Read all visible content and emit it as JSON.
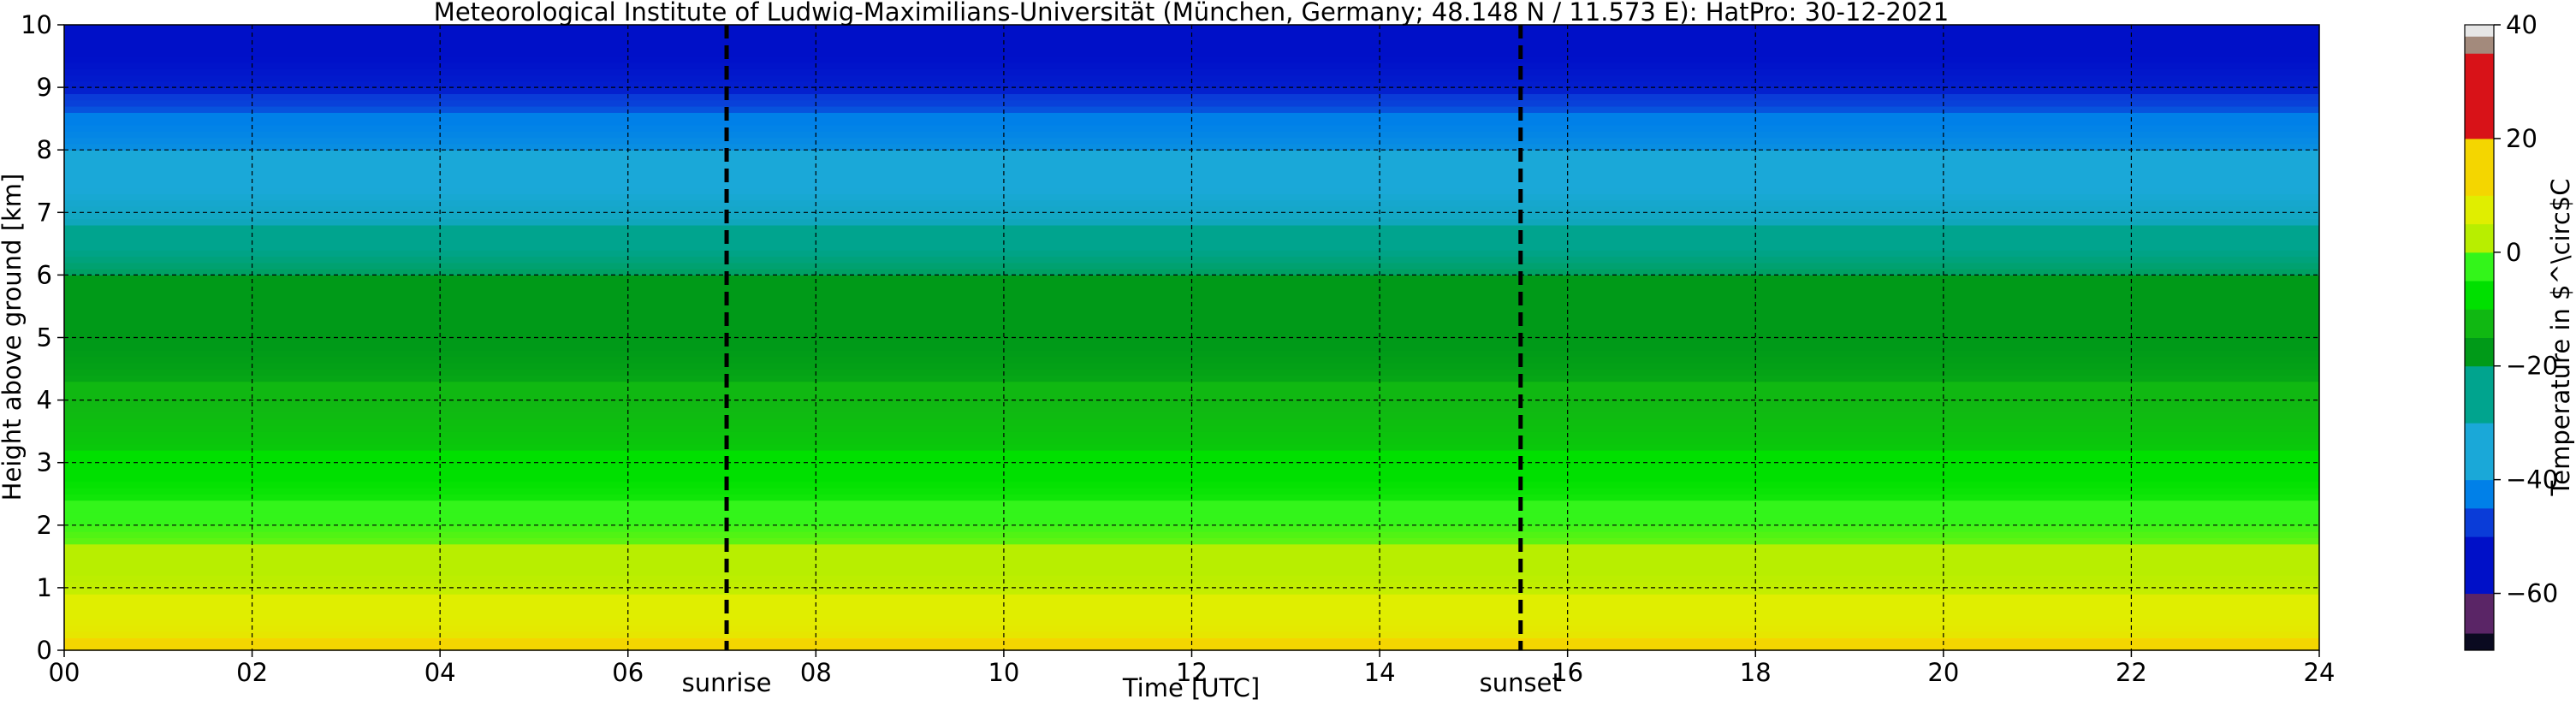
{
  "chart_data": {
    "type": "heatmap",
    "title": "Meteorological Institute of Ludwig-Maximilians-Universität (München, Germany; 48.148 N / 11.573 E):    HatPro: 30-12-2021",
    "xlabel": "Time [UTC]",
    "ylabel": "Height above ground [km]",
    "xlim": [
      0,
      24
    ],
    "ylim": [
      0,
      10
    ],
    "grid": true,
    "x_ticks": [
      "00",
      "02",
      "04",
      "06",
      "08",
      "10",
      "12",
      "14",
      "16",
      "18",
      "20",
      "22",
      "24"
    ],
    "y_ticks": [
      "0",
      "1",
      "2",
      "3",
      "4",
      "5",
      "6",
      "7",
      "8",
      "9",
      "10"
    ],
    "events": [
      {
        "label": "sunrise",
        "time": 7.05
      },
      {
        "label": "sunset",
        "time": 15.5
      }
    ],
    "colorbar": {
      "label": "Temperature in $^\\circ$C",
      "ticks": [
        "40",
        "20",
        "0",
        "−20",
        "−40",
        "−60"
      ],
      "range": [
        -70,
        40
      ],
      "segments": [
        {
          "from": -70,
          "to": -67,
          "color": "#0a0a20"
        },
        {
          "from": -67,
          "to": -60,
          "color": "#5a2566"
        },
        {
          "from": -60,
          "to": -50,
          "color": "#0010c8"
        },
        {
          "from": -50,
          "to": -45,
          "color": "#0a3cd8"
        },
        {
          "from": -45,
          "to": -40,
          "color": "#0080e8"
        },
        {
          "from": -40,
          "to": -30,
          "color": "#1aa8d8"
        },
        {
          "from": -30,
          "to": -20,
          "color": "#00a48e"
        },
        {
          "from": -20,
          "to": -15,
          "color": "#009a18"
        },
        {
          "from": -15,
          "to": -10,
          "color": "#10b812"
        },
        {
          "from": -10,
          "to": -5,
          "color": "#00e000"
        },
        {
          "from": -5,
          "to": 0,
          "color": "#33f51a"
        },
        {
          "from": 0,
          "to": 5,
          "color": "#b8ee00"
        },
        {
          "from": 5,
          "to": 10,
          "color": "#e0ee00"
        },
        {
          "from": 10,
          "to": 20,
          "color": "#f4d600"
        },
        {
          "from": 20,
          "to": 35,
          "color": "#d81218"
        },
        {
          "from": 35,
          "to": 38,
          "color": "#a38a7c"
        },
        {
          "from": 38,
          "to": 40,
          "color": "#e6e6e6"
        }
      ]
    },
    "temperature_profile_km_degC": [
      [
        0.0,
        11
      ],
      [
        0.5,
        8
      ],
      [
        1.0,
        4
      ],
      [
        1.5,
        1
      ],
      [
        2.0,
        -2
      ],
      [
        2.5,
        -6
      ],
      [
        3.0,
        -9
      ],
      [
        3.5,
        -11
      ],
      [
        4.0,
        -13
      ],
      [
        4.5,
        -16
      ],
      [
        5.0,
        -18
      ],
      [
        5.5,
        -19
      ],
      [
        6.0,
        -20
      ],
      [
        6.5,
        -26
      ],
      [
        7.0,
        -32
      ],
      [
        7.5,
        -36
      ],
      [
        8.0,
        -40
      ],
      [
        8.5,
        -43
      ],
      [
        9.0,
        -51
      ],
      [
        9.5,
        -55
      ],
      [
        10.0,
        -56
      ]
    ]
  }
}
